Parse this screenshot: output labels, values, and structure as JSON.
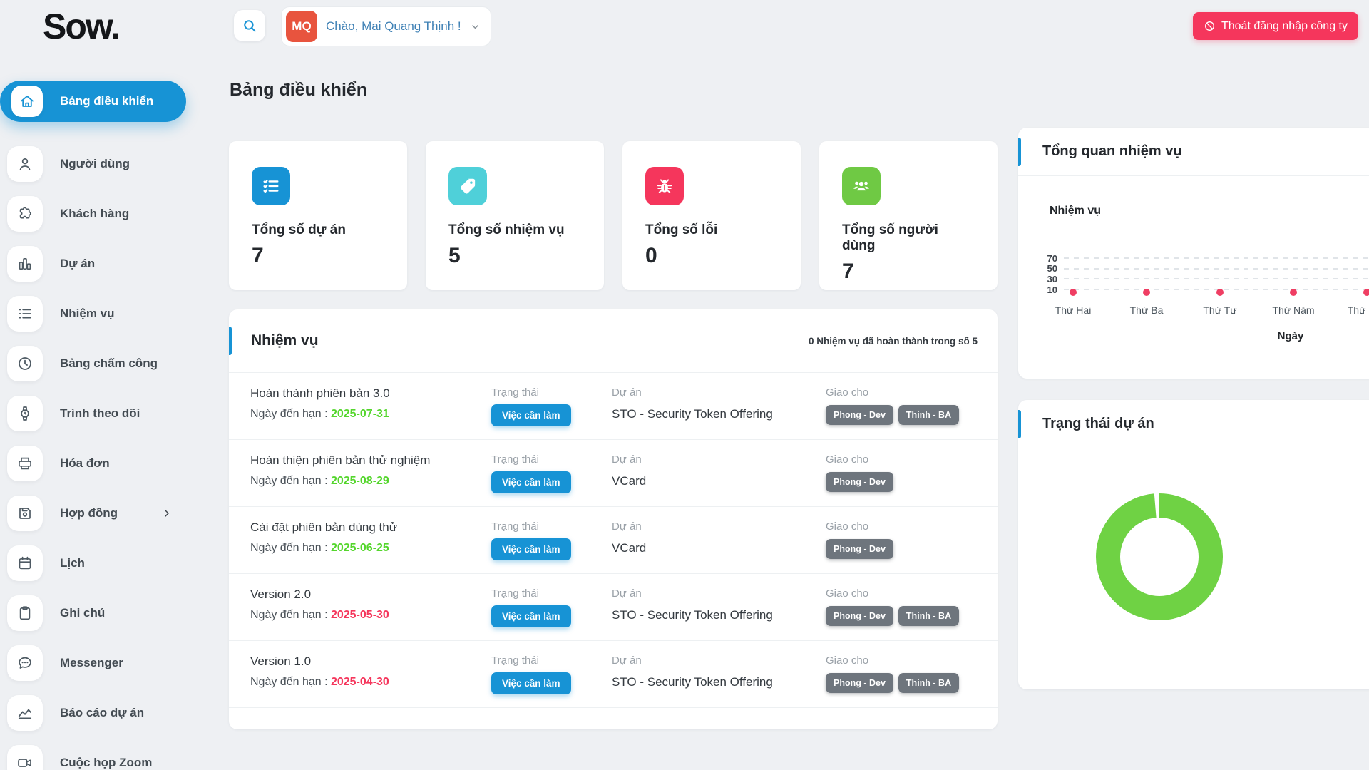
{
  "header": {
    "logo": "Sow.",
    "greeting": "Chào, Mai Quang Thịnh !",
    "avatar_initials": "MQ",
    "logout_label": "Thoát đăng nhập công ty"
  },
  "colors": {
    "primary_blue": "#1793d5",
    "logout_red": "#f5365c",
    "avatar_red": "#e8543e",
    "badge_gray": "#6e757d",
    "due_green": "#54d62c",
    "due_red": "#f5365c"
  },
  "sidebar": {
    "items": [
      {
        "id": "dashboard",
        "icon": "home",
        "label": "Bảng điều khiển",
        "active": true
      },
      {
        "id": "users",
        "icon": "user",
        "label": "Người dùng"
      },
      {
        "id": "clients",
        "icon": "puzzle",
        "label": "Khách hàng"
      },
      {
        "id": "projects",
        "icon": "bars",
        "label": "Dự án"
      },
      {
        "id": "tasks",
        "icon": "list",
        "label": "Nhiệm vụ"
      },
      {
        "id": "timesheet",
        "icon": "clock",
        "label": "Bảng chấm công"
      },
      {
        "id": "tracker",
        "icon": "watch",
        "label": "Trình theo dõi"
      },
      {
        "id": "invoices",
        "icon": "printer",
        "label": "Hóa đơn"
      },
      {
        "id": "contracts",
        "icon": "floppy",
        "label": "Hợp đồng",
        "chevron": true
      },
      {
        "id": "calendar",
        "icon": "calendar",
        "label": "Lịch"
      },
      {
        "id": "notes",
        "icon": "clipboard",
        "label": "Ghi chú"
      },
      {
        "id": "messenger",
        "icon": "chat",
        "label": "Messenger"
      },
      {
        "id": "reports",
        "icon": "trend",
        "label": "Báo cáo dự án"
      },
      {
        "id": "zoom-meeting",
        "icon": "video",
        "label": "Cuộc họp Zoom"
      }
    ]
  },
  "page": {
    "title": "Bảng điều khiển"
  },
  "stats": [
    {
      "icon": "checklist",
      "color": "#1793d5",
      "label": "Tổng số dự án",
      "value": "7"
    },
    {
      "icon": "tag",
      "color": "#4fd0d9",
      "label": "Tổng số nhiệm vụ",
      "value": "5"
    },
    {
      "icon": "bug",
      "color": "#f5365c",
      "label": "Tổng số lỗi",
      "value": "0"
    },
    {
      "icon": "users",
      "color": "#6fc944",
      "label": "Tổng số người dùng",
      "value": "7"
    }
  ],
  "tasks_panel": {
    "title": "Nhiệm vụ",
    "summary": "0 Nhiệm vụ đã hoàn thành trong số 5",
    "due_prefix": "Ngày đến hạn :",
    "status_label": "Trạng thái",
    "project_label": "Dự án",
    "assignee_label": "Giao cho",
    "rows": [
      {
        "name": "Hoàn thành phiên bản 3.0",
        "due": "2025-07-31",
        "due_color": "#54d62c",
        "status": "Việc cần làm",
        "project": "STO - Security Token Offering",
        "assignees": [
          "Phong - Dev",
          "Thinh - BA"
        ]
      },
      {
        "name": "Hoàn thiện phiên bản thử nghiệm",
        "due": "2025-08-29",
        "due_color": "#54d62c",
        "status": "Việc cần làm",
        "project": "VCard",
        "assignees": [
          "Phong - Dev"
        ]
      },
      {
        "name": "Cài đặt phiên bản dùng thử",
        "due": "2025-06-25",
        "due_color": "#54d62c",
        "status": "Việc cần làm",
        "project": "VCard",
        "assignees": [
          "Phong - Dev"
        ]
      },
      {
        "name": "Version 2.0",
        "due": "2025-05-30",
        "due_color": "#f5365c",
        "status": "Việc cần làm",
        "project": "STO - Security Token Offering",
        "assignees": [
          "Phong - Dev",
          "Thinh - BA"
        ]
      },
      {
        "name": "Version 1.0",
        "due": "2025-04-30",
        "due_color": "#f5365c",
        "status": "Việc cần làm",
        "project": "STO - Security Token Offering",
        "assignees": [
          "Phong - Dev",
          "Thinh - BA"
        ]
      }
    ]
  },
  "overview_panel": {
    "title": "Tổng quan nhiệm vụ"
  },
  "status_panel": {
    "title": "Trạng thái dự án"
  },
  "chart_data": [
    {
      "type": "line",
      "title": "Nhiệm vụ",
      "ylabel": "Nhiệm vụ",
      "xlabel": "Ngày",
      "categories": [
        "Thứ Hai",
        "Thứ Ba",
        "Thứ Tư",
        "Thứ Năm",
        "Thứ Sáu"
      ],
      "values": [
        0,
        0,
        0,
        0,
        0
      ],
      "yticks": [
        70,
        50,
        30,
        10
      ],
      "ylim": [
        0,
        80
      ],
      "grid": "dashed-horizontal",
      "point_color": "#ef3e63",
      "legend": "none"
    },
    {
      "type": "pie",
      "title": "Trạng thái dự án",
      "donut": true,
      "segments": [
        {
          "label": "",
          "value": 100,
          "color": "#6fd244"
        }
      ],
      "legend": "none"
    }
  ]
}
